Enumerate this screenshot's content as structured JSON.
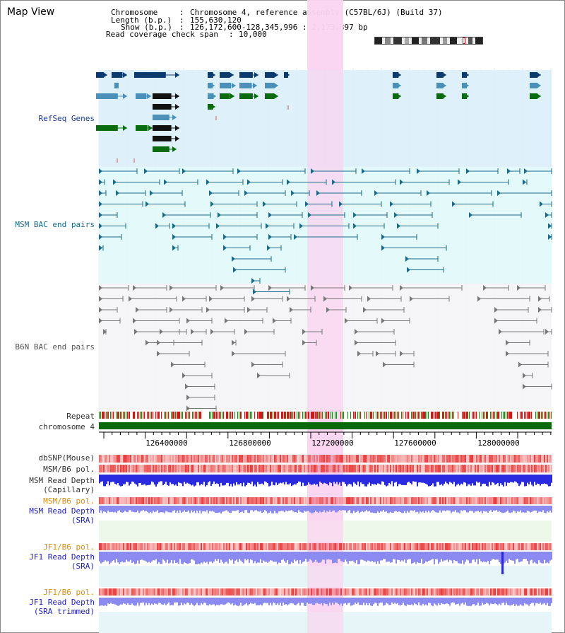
{
  "window": {
    "title": "Map View"
  },
  "header": {
    "chromosome_label": "Chromosome",
    "chromosome_value": "Chromosome 4, reference assembly (C57BL/6J) (Build 37)",
    "length_label": "Length (b.p.)",
    "length_value": "155,630,120",
    "show_label": "Show (b.p.)",
    "show_value": "126,172,600-128,345,996 : 2,173,397 bp",
    "coverage_label": "Read coverage check span",
    "coverage_value": "10,000"
  },
  "tracks": {
    "refseq": "RefSeq Genes",
    "msm_bac": "MSM BAC end pairs",
    "b6n_bac": "B6N BAC end pairs",
    "repeat": "Repeat",
    "chromosome": "chromosome 4",
    "dbsnp": "dbSNP(Mouse)",
    "msm_b6_pol": "MSM/B6 pol.",
    "msm_read_depth_cap_1": "MSM Read Depth",
    "msm_read_depth_cap_2": "(Capillary)",
    "msm_b6_pol_2": "MSM/B6 pol.",
    "msm_read_depth_sra_1": "MSM Read Depth",
    "msm_read_depth_sra_2": "(SRA)",
    "jf1_b6_pol": "JF1/B6 pol.",
    "jf1_read_depth_sra_1": "JF1 Read Depth",
    "jf1_read_depth_sra_2": "(SRA)",
    "jf1_b6_pol_2": "JF1/B6 pol.",
    "jf1_read_depth_trim_1": "JF1 Read Depth",
    "jf1_read_depth_trim_2": "(SRA trimmed)"
  },
  "ruler": {
    "ticks": [
      "126400000",
      "126800000",
      "127200000",
      "127600000",
      "128000000"
    ]
  },
  "colors": {
    "highlight": "#f9d4f0",
    "refseq_bg": "#daf0fa",
    "msm_bg": "#e0f8fa",
    "b6n_bg": "#f4f4f6",
    "gene_dark": "#0a3a6e",
    "gene_mid": "#4a90b8",
    "gene_green": "#0a6a10",
    "bac_msm": "#1a6a8a",
    "bac_b6n": "#777777",
    "repeat_red": "#cc1a1a",
    "repeat_green": "#2a7a2a",
    "chrom_green": "#0a6a0a",
    "pol_red": "#e83a3a",
    "depth_blue": "#2a2ae0",
    "depth_sra": "#8a8af0"
  }
}
